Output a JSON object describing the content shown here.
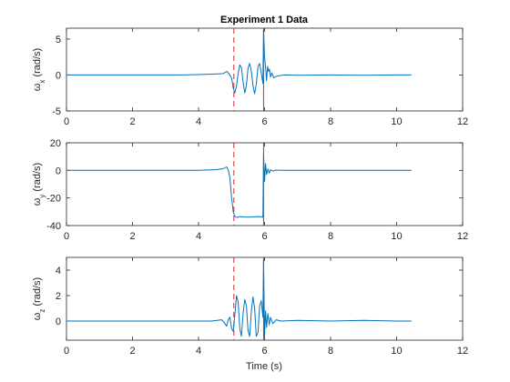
{
  "figure": {
    "title": "Experiment 1 Data",
    "xlabel": "Time (s)",
    "line_color": "#0072BD",
    "marker_color": "#D62728",
    "axes_color": "#262626"
  },
  "chart_data": [
    {
      "type": "line",
      "title": "Experiment 1 Data",
      "xlabel": "",
      "ylabel_symbol": "ω",
      "ylabel_sub": "x",
      "ylabel_unit": " (rad/s)",
      "xlim": [
        0,
        12
      ],
      "ylim": [
        -5,
        6.5
      ],
      "xticks": [
        0,
        2,
        4,
        6,
        8,
        10,
        12
      ],
      "yticks": [
        -5,
        0,
        5
      ],
      "vlines": [
        {
          "x": 5.07,
          "style": "dashed"
        },
        {
          "x": 5.97,
          "style": "solid"
        }
      ],
      "series": [
        {
          "x": [
            0,
            0.5,
            1,
            1.5,
            2,
            2.5,
            3,
            3.5,
            4,
            4.3,
            4.6,
            4.75,
            4.85,
            4.92,
            5.0,
            5.05,
            5.1,
            5.15,
            5.2,
            5.25,
            5.3,
            5.35,
            5.4,
            5.45,
            5.5,
            5.55,
            5.6,
            5.65,
            5.7,
            5.75,
            5.8,
            5.85,
            5.9,
            5.95,
            5.97,
            6.0,
            6.03,
            6.06,
            6.09,
            6.12,
            6.15,
            6.18,
            6.22,
            6.28,
            6.35,
            6.45,
            6.6,
            7,
            8,
            9,
            10,
            10.45
          ],
          "y": [
            0,
            0,
            0,
            0,
            0,
            0,
            0,
            0,
            0.05,
            0.1,
            0.15,
            0.2,
            0.5,
            0.2,
            -0.4,
            -1.8,
            -2.5,
            -1.5,
            0.2,
            1.4,
            1.0,
            -1.0,
            -2.5,
            -1.4,
            1.0,
            1.6,
            0.5,
            -1.5,
            -2.6,
            -1.3,
            1.2,
            1.6,
            0.3,
            -1.2,
            6.3,
            2.5,
            1.0,
            -0.8,
            1.2,
            0.5,
            0.8,
            -0.3,
            0.3,
            -0.4,
            -0.2,
            -0.1,
            0.0,
            -0.05,
            0.0,
            -0.05,
            0.0,
            0.0
          ]
        }
      ]
    },
    {
      "type": "line",
      "title": "",
      "xlabel": "",
      "ylabel_symbol": "ω",
      "ylabel_sub": "y",
      "ylabel_unit": " (rad/s)",
      "xlim": [
        0,
        12
      ],
      "ylim": [
        -40,
        20
      ],
      "xticks": [
        0,
        2,
        4,
        6,
        8,
        10,
        12
      ],
      "yticks": [
        -40,
        -20,
        0,
        20
      ],
      "vlines": [
        {
          "x": 5.07,
          "style": "dashed"
        },
        {
          "x": 5.97,
          "style": "solid"
        }
      ],
      "series": [
        {
          "x": [
            0,
            1,
            2,
            3,
            4,
            4.5,
            4.75,
            4.85,
            4.9,
            4.95,
            5.0,
            5.05,
            5.1,
            5.15,
            5.2,
            5.25,
            5.4,
            5.6,
            5.8,
            5.9,
            5.95,
            5.97,
            6.0,
            6.03,
            6.06,
            6.1,
            6.14,
            6.18,
            6.25,
            6.35,
            6.5,
            7,
            8,
            9,
            10,
            10.45
          ],
          "y": [
            0,
            0,
            0,
            0,
            0,
            0.5,
            1.2,
            2.5,
            0.5,
            -5,
            -20,
            -30,
            -33.5,
            -34,
            -34,
            -33.5,
            -33.8,
            -33.8,
            -33.5,
            -33.7,
            -34,
            12,
            -8,
            5,
            -3,
            1,
            -2,
            0.5,
            -0.5,
            0.2,
            0,
            0,
            0,
            0,
            0,
            0
          ]
        }
      ]
    },
    {
      "type": "line",
      "title": "",
      "xlabel": "Time (s)",
      "ylabel_symbol": "ω",
      "ylabel_sub": "z",
      "ylabel_unit": " (rad/s)",
      "xlim": [
        0,
        12
      ],
      "ylim": [
        -1.5,
        5
      ],
      "xticks": [
        0,
        2,
        4,
        6,
        8,
        10,
        12
      ],
      "yticks": [
        0,
        2,
        4
      ],
      "vlines": [
        {
          "x": 5.07,
          "style": "dashed"
        },
        {
          "x": 5.97,
          "style": "solid"
        }
      ],
      "series": [
        {
          "x": [
            0,
            1,
            2,
            3,
            4,
            4.4,
            4.7,
            4.8,
            4.85,
            4.9,
            4.95,
            5.0,
            5.05,
            5.1,
            5.15,
            5.2,
            5.25,
            5.3,
            5.35,
            5.4,
            5.45,
            5.5,
            5.55,
            5.6,
            5.65,
            5.7,
            5.75,
            5.8,
            5.85,
            5.9,
            5.95,
            5.97,
            6.0,
            6.03,
            6.06,
            6.1,
            6.14,
            6.18,
            6.25,
            6.35,
            6.5,
            7,
            8,
            9,
            10,
            10.45
          ],
          "y": [
            0,
            0,
            0,
            0,
            0,
            0,
            0.1,
            -0.2,
            -0.4,
            0.1,
            0.3,
            -0.6,
            -0.8,
            0.5,
            2.0,
            1.5,
            -0.6,
            -1.2,
            0.6,
            1.7,
            1.2,
            -0.8,
            -1.2,
            0.8,
            1.9,
            1.0,
            -1.2,
            -0.9,
            1.2,
            1.6,
            0.3,
            4.8,
            -1.2,
            0.8,
            -0.5,
            0.6,
            -0.3,
            0.3,
            -0.2,
            0.1,
            0,
            0.05,
            0,
            0.05,
            0,
            0
          ]
        }
      ]
    }
  ]
}
